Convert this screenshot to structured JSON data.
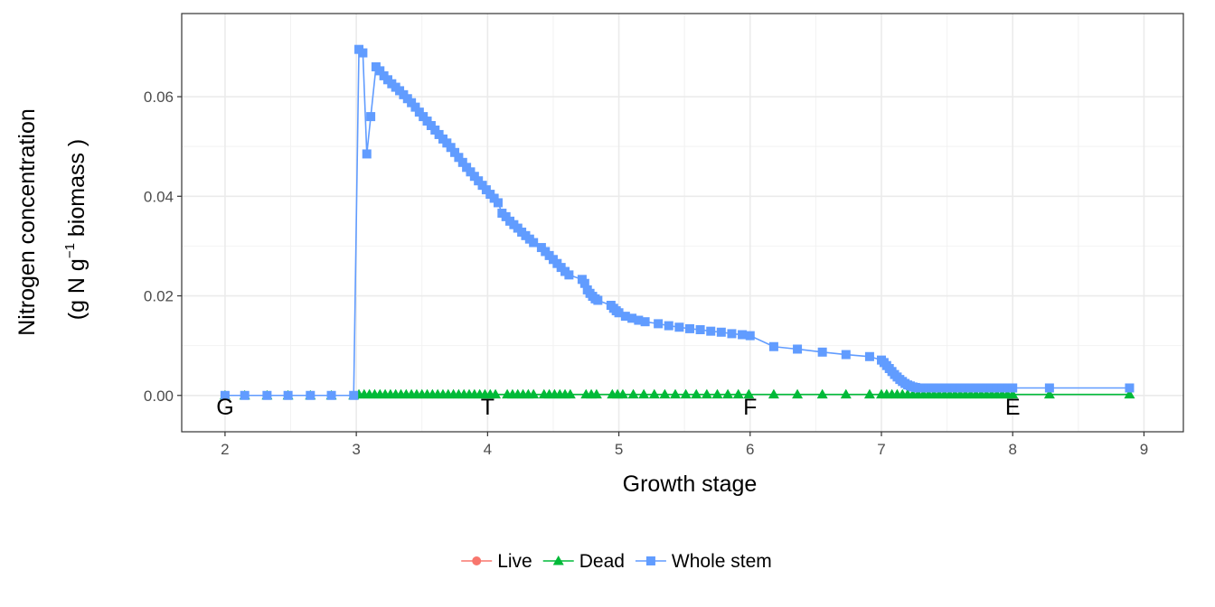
{
  "chart_data": {
    "type": "line",
    "xlabel": "Growth stage",
    "ylabel_line1": "Nitrogen concentration",
    "ylabel_line2_prefix": "(g N  g",
    "ylabel_sup": "−1",
    "ylabel_line2_suffix": " biomass )",
    "xlim": [
      1.67,
      9.3
    ],
    "ylim": [
      -0.0073,
      0.0767
    ],
    "x_ticks": [
      2,
      3,
      4,
      5,
      6,
      7,
      8,
      9
    ],
    "x_tick_labels": [
      "2",
      "3",
      "4",
      "5",
      "6",
      "7",
      "8",
      "9"
    ],
    "y_ticks": [
      0,
      0.02,
      0.04,
      0.06
    ],
    "y_tick_labels": [
      "0.00",
      "0.02",
      "0.04",
      "0.06"
    ],
    "stage_markers": [
      {
        "x": 2,
        "label": "G"
      },
      {
        "x": 4,
        "label": "T"
      },
      {
        "x": 6,
        "label": "F"
      },
      {
        "x": 8,
        "label": "E"
      }
    ],
    "grid": true,
    "legend_position": "bottom",
    "series": [
      {
        "name": "Live",
        "color": "#F8766D",
        "marker": "circle",
        "x": [],
        "y": []
      },
      {
        "name": "Dead",
        "color": "#00BA38",
        "marker": "triangle",
        "x": [
          2.0,
          2.15,
          2.32,
          2.48,
          2.65,
          2.81,
          2.98,
          3.02,
          3.06,
          3.1,
          3.14,
          3.18,
          3.22,
          3.26,
          3.3,
          3.34,
          3.38,
          3.42,
          3.46,
          3.5,
          3.54,
          3.58,
          3.62,
          3.66,
          3.7,
          3.74,
          3.78,
          3.82,
          3.86,
          3.9,
          3.94,
          3.98,
          4.02,
          4.06,
          4.15,
          4.19,
          4.23,
          4.27,
          4.31,
          4.35,
          4.43,
          4.47,
          4.51,
          4.55,
          4.59,
          4.63,
          4.75,
          4.79,
          4.83,
          4.95,
          4.99,
          5.03,
          5.11,
          5.19,
          5.27,
          5.35,
          5.43,
          5.51,
          5.59,
          5.67,
          5.75,
          5.83,
          5.91,
          5.99,
          6.18,
          6.36,
          6.55,
          6.73,
          6.91,
          7.0,
          7.04,
          7.08,
          7.12,
          7.16,
          7.2,
          7.24,
          7.28,
          7.32,
          7.36,
          7.4,
          7.44,
          7.48,
          7.52,
          7.56,
          7.6,
          7.64,
          7.68,
          7.72,
          7.76,
          7.8,
          7.84,
          7.88,
          7.92,
          7.96,
          8.0,
          8.28,
          8.89
        ],
        "y": [
          0,
          0,
          0,
          0,
          0,
          0,
          0,
          0.0002,
          0.0002,
          0.0002,
          0.0002,
          0.0002,
          0.0002,
          0.0002,
          0.0002,
          0.0002,
          0.0002,
          0.0002,
          0.0002,
          0.0002,
          0.0002,
          0.0002,
          0.0002,
          0.0002,
          0.0002,
          0.0002,
          0.0002,
          0.0002,
          0.0002,
          0.0002,
          0.0002,
          0.0002,
          0.0002,
          0.0002,
          0.0002,
          0.0002,
          0.0002,
          0.0002,
          0.0002,
          0.0002,
          0.0002,
          0.0002,
          0.0002,
          0.0002,
          0.0002,
          0.0002,
          0.0002,
          0.0002,
          0.0002,
          0.0002,
          0.0002,
          0.0002,
          0.0002,
          0.0002,
          0.0002,
          0.0002,
          0.0002,
          0.0002,
          0.0002,
          0.0002,
          0.0002,
          0.0002,
          0.0002,
          0.0002,
          0.0002,
          0.0002,
          0.0002,
          0.0002,
          0.0002,
          0.0002,
          0.0002,
          0.0002,
          0.0002,
          0.0002,
          0.0002,
          0.0002,
          0.0002,
          0.0002,
          0.0002,
          0.0002,
          0.0002,
          0.0002,
          0.0002,
          0.0002,
          0.0002,
          0.0002,
          0.0002,
          0.0002,
          0.0002,
          0.0002,
          0.0002,
          0.0002,
          0.0002,
          0.0002,
          0.0002,
          0.0002,
          0.0002
        ]
      },
      {
        "name": "Whole stem",
        "color": "#619CFF",
        "marker": "square",
        "x": [
          2.0,
          2.15,
          2.32,
          2.48,
          2.65,
          2.81,
          2.98,
          3.02,
          3.05,
          3.08,
          3.11,
          3.15,
          3.18,
          3.21,
          3.24,
          3.27,
          3.3,
          3.33,
          3.36,
          3.39,
          3.42,
          3.45,
          3.48,
          3.51,
          3.54,
          3.57,
          3.6,
          3.63,
          3.66,
          3.69,
          3.72,
          3.75,
          3.78,
          3.81,
          3.84,
          3.87,
          3.9,
          3.93,
          3.96,
          3.99,
          4.02,
          4.05,
          4.08,
          4.11,
          4.14,
          4.17,
          4.2,
          4.23,
          4.26,
          4.29,
          4.32,
          4.35,
          4.41,
          4.44,
          4.47,
          4.5,
          4.53,
          4.56,
          4.59,
          4.62,
          4.72,
          4.74,
          4.76,
          4.78,
          4.8,
          4.82,
          4.84,
          4.94,
          4.96,
          4.98,
          5.0,
          5.05,
          5.1,
          5.15,
          5.2,
          5.3,
          5.38,
          5.46,
          5.54,
          5.62,
          5.7,
          5.78,
          5.86,
          5.94,
          6.0,
          6.18,
          6.36,
          6.55,
          6.73,
          6.91,
          7.0,
          7.02,
          7.04,
          7.06,
          7.08,
          7.1,
          7.12,
          7.14,
          7.16,
          7.18,
          7.2,
          7.22,
          7.24,
          7.26,
          7.28,
          7.3,
          7.32,
          7.34,
          7.36,
          7.38,
          7.4,
          7.44,
          7.48,
          7.52,
          7.56,
          7.6,
          7.64,
          7.68,
          7.72,
          7.76,
          7.8,
          7.84,
          7.88,
          7.92,
          7.96,
          8.0,
          8.28,
          8.89
        ],
        "y": [
          0.0,
          0.0,
          0.0,
          0.0,
          0.0,
          0.0,
          0.0,
          0.0695,
          0.0688,
          0.0485,
          0.056,
          0.066,
          0.0652,
          0.0642,
          0.0634,
          0.0626,
          0.0619,
          0.0612,
          0.0604,
          0.0596,
          0.0588,
          0.0579,
          0.0569,
          0.056,
          0.0551,
          0.0542,
          0.0533,
          0.0524,
          0.0515,
          0.0507,
          0.0498,
          0.0488,
          0.0478,
          0.0468,
          0.0458,
          0.0449,
          0.044,
          0.0431,
          0.0422,
          0.0413,
          0.0404,
          0.0396,
          0.0387,
          0.0366,
          0.0359,
          0.035,
          0.0343,
          0.0336,
          0.0328,
          0.0321,
          0.0314,
          0.0307,
          0.0297,
          0.0289,
          0.0281,
          0.0273,
          0.0265,
          0.0257,
          0.0249,
          0.0242,
          0.0233,
          0.0225,
          0.0212,
          0.0205,
          0.0199,
          0.0194,
          0.0191,
          0.0181,
          0.0175,
          0.017,
          0.0166,
          0.0159,
          0.0155,
          0.0151,
          0.0148,
          0.0144,
          0.014,
          0.0137,
          0.0134,
          0.0132,
          0.0129,
          0.0127,
          0.0124,
          0.0122,
          0.012,
          0.0098,
          0.0093,
          0.0087,
          0.0082,
          0.0078,
          0.0071,
          0.0066,
          0.006,
          0.0054,
          0.0048,
          0.0042,
          0.0037,
          0.0032,
          0.0028,
          0.0024,
          0.0021,
          0.0019,
          0.0017,
          0.0016,
          0.0015,
          0.0015,
          0.0015,
          0.0015,
          0.0015,
          0.0015,
          0.0015,
          0.0015,
          0.0015,
          0.0015,
          0.0015,
          0.0015,
          0.0015,
          0.0015,
          0.0015,
          0.0015,
          0.0015,
          0.0015,
          0.0015,
          0.0015,
          0.0015,
          0.0015,
          0.0015,
          0.0015
        ]
      }
    ]
  }
}
